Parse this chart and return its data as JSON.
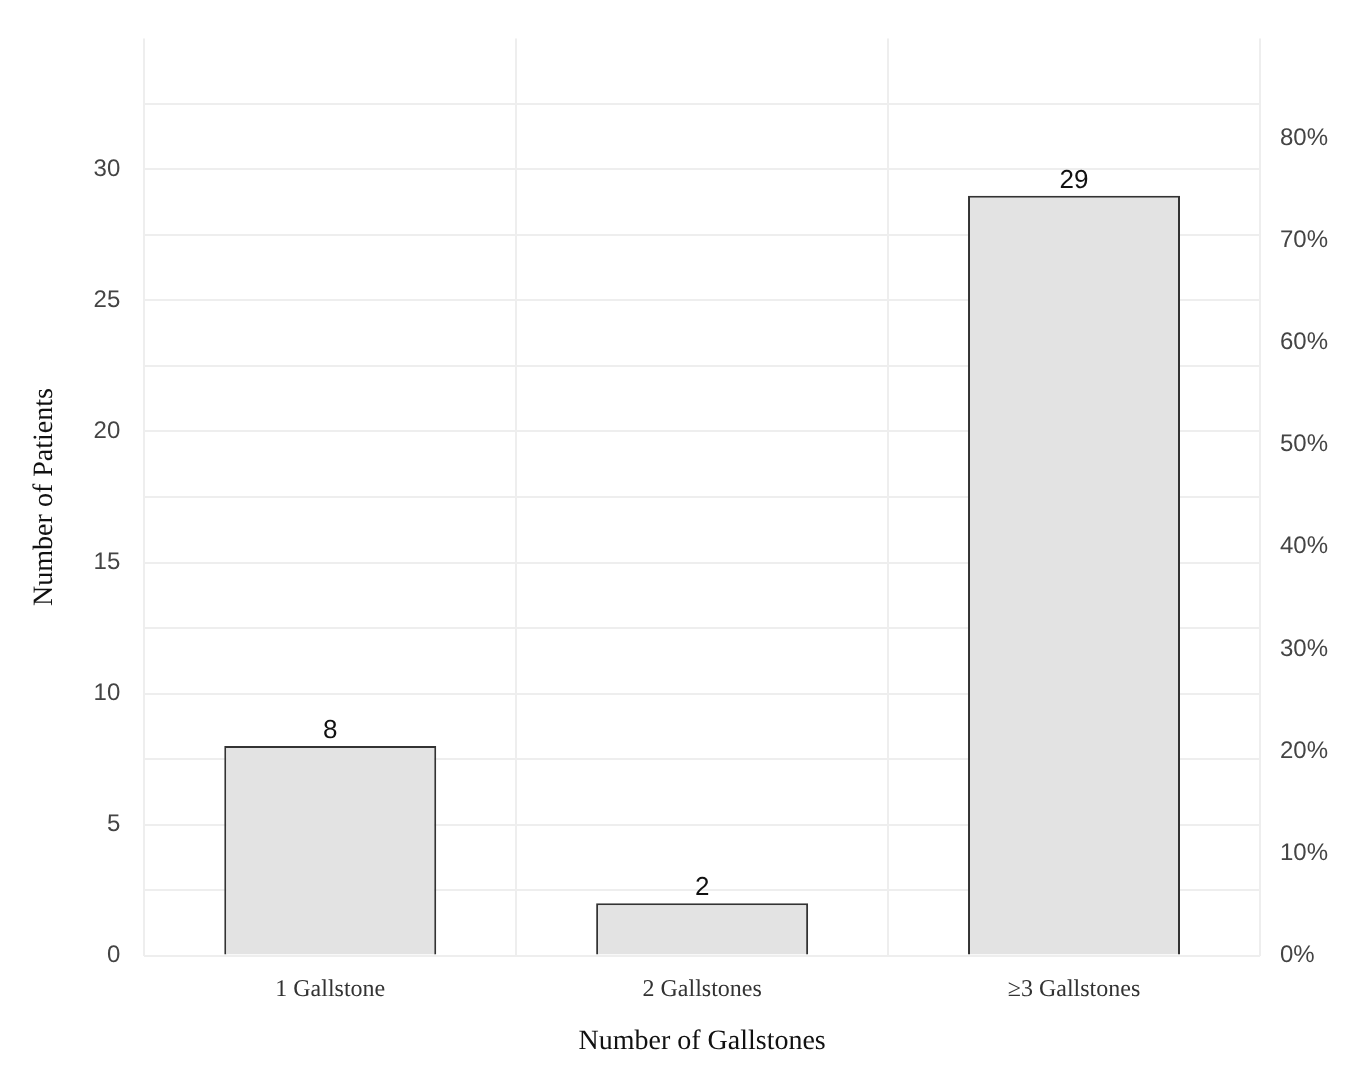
{
  "chart_data": {
    "type": "bar",
    "xlabel": "Number of Gallstones",
    "ylabel": "Number of Patients",
    "categories": [
      "1 Gallstone",
      "2 Gallstones",
      "≥3 Gallstones"
    ],
    "values": [
      8,
      2,
      29
    ],
    "color": "#e3e3e3",
    "data_labels": true,
    "grid": true,
    "legend": false,
    "ylim": [
      0,
      35
    ],
    "yticks": [
      0,
      {
        "value": 2.5,
        "label": null
      },
      5,
      {
        "value": 7.5,
        "label": null
      },
      10,
      {
        "value": 12.5,
        "label": null
      },
      15,
      {
        "value": 17.5,
        "label": null
      },
      20,
      {
        "value": 22.5,
        "label": null
      },
      25,
      {
        "value": 27.5,
        "label": null
      },
      30,
      {
        "value": 32.5,
        "label": null
      }
    ],
    "y2lim": [
      0,
      89.74
    ],
    "y2ticks": [
      {
        "value": 0,
        "label": "0%"
      },
      {
        "value": 10,
        "label": "10%"
      },
      {
        "value": 20,
        "label": "20%"
      },
      {
        "value": 30,
        "label": "30%"
      },
      {
        "value": 40,
        "label": "40%"
      },
      {
        "value": 50,
        "label": "50%"
      },
      {
        "value": 60,
        "label": "60%"
      },
      {
        "value": 70,
        "label": "70%"
      },
      {
        "value": 80,
        "label": "80%"
      }
    ]
  }
}
